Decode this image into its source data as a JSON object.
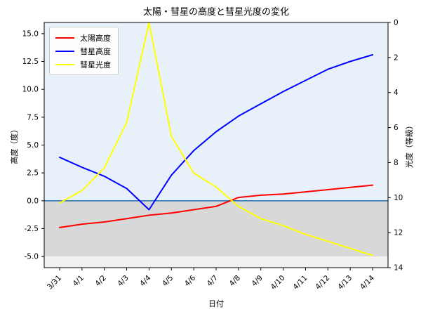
{
  "figure": {
    "title": "太陽・彗星の高度と彗星光度の変化",
    "xlabel": "日付",
    "ylabel_left": "高度（度）",
    "ylabel_right": "光度（等級）"
  },
  "legend": {
    "position": "upper-left",
    "items": [
      {
        "label": "太陽高度",
        "color": "#ff0000"
      },
      {
        "label": "彗星高度",
        "color": "#0000ff"
      },
      {
        "label": "彗星光度",
        "color": "#ffff00"
      }
    ]
  },
  "chart_data": {
    "type": "line",
    "title": "太陽・彗星の高度と彗星光度の変化",
    "xlabel": "日付",
    "ylabel_left": "高度（度）",
    "ylabel_right": "光度（等級）",
    "categories": [
      "3/31",
      "4/1",
      "4/2",
      "4/3",
      "4/4",
      "4/5",
      "4/6",
      "4/7",
      "4/8",
      "4/9",
      "4/10",
      "4/11",
      "4/12",
      "4/13",
      "4/14"
    ],
    "series": [
      {
        "name": "太陽高度",
        "axis": "left",
        "color": "#ff0000",
        "values": [
          -2.4,
          -2.1,
          -1.9,
          -1.6,
          -1.3,
          -1.1,
          -0.8,
          -0.5,
          0.3,
          0.5,
          0.6,
          0.8,
          1.0,
          1.2,
          1.4
        ]
      },
      {
        "name": "彗星高度",
        "axis": "left",
        "color": "#0000ff",
        "values": [
          3.9,
          3.0,
          2.2,
          1.1,
          -0.8,
          2.3,
          4.5,
          6.2,
          7.6,
          8.7,
          9.8,
          10.8,
          11.8,
          12.5,
          13.1
        ]
      },
      {
        "name": "彗星光度",
        "axis": "right",
        "color": "#ffff00",
        "values": [
          10.3,
          9.6,
          8.3,
          5.7,
          0.0,
          6.5,
          8.6,
          9.4,
          10.5,
          11.2,
          11.6,
          12.1,
          12.5,
          12.9,
          13.3
        ]
      }
    ],
    "left_axis": {
      "lim": [
        -6,
        16
      ],
      "ticks": [
        -5.0,
        -2.5,
        0.0,
        2.5,
        5.0,
        7.5,
        10.0,
        12.5,
        15.0
      ],
      "tick_format": "1dp"
    },
    "right_axis": {
      "lim": [
        14,
        0
      ],
      "inverted": true,
      "ticks": [
        0,
        2,
        4,
        6,
        8,
        10,
        12,
        14
      ],
      "tick_format": "int"
    },
    "zero_line": {
      "y": 0.0,
      "color": "#2e77b4"
    },
    "background_spans": [
      {
        "axis": "left",
        "from": 0,
        "to": 16,
        "color": "#e8f0fa"
      },
      {
        "axis": "left",
        "from": -5,
        "to": 0,
        "color": "#d8d8d8"
      },
      {
        "axis": "left",
        "from": -6,
        "to": -5,
        "color": "#f0f0f0"
      }
    ],
    "x_tick_rotation": 45,
    "grid": false,
    "legend_position": "upper-left"
  }
}
